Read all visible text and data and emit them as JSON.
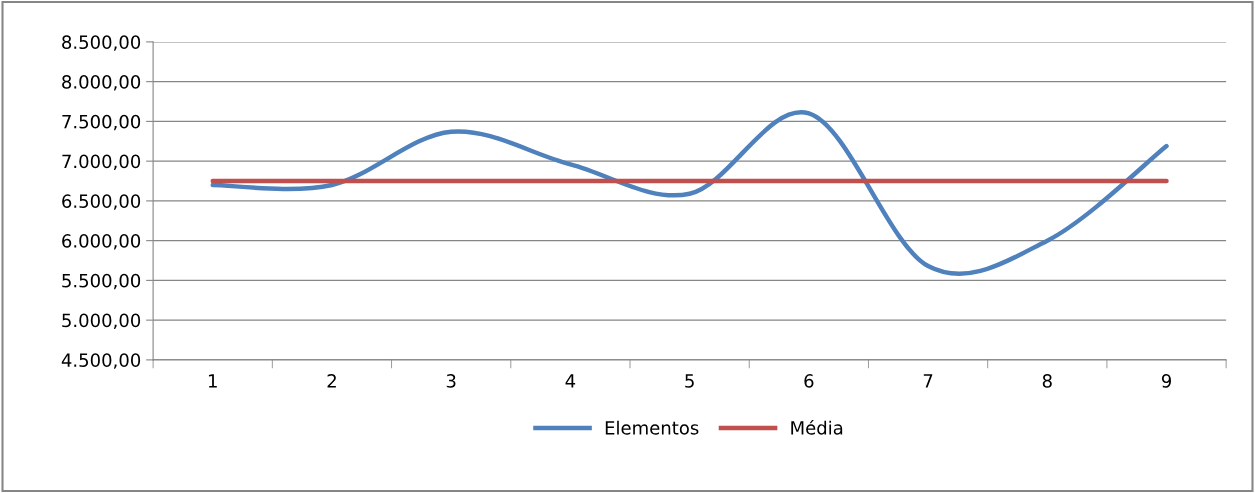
{
  "chart_data": {
    "type": "line",
    "categories": [
      "1",
      "2",
      "3",
      "4",
      "5",
      "6",
      "7",
      "8",
      "9"
    ],
    "series": [
      {
        "name": "Elementos",
        "color": "#4f81bd",
        "values": [
          6700,
          6700,
          7370,
          6960,
          6590,
          7600,
          5680,
          6000,
          7190
        ]
      },
      {
        "name": "Média",
        "color": "#c0504d",
        "values": [
          6750,
          6750,
          6750,
          6750,
          6750,
          6750,
          6750,
          6750,
          6750
        ]
      }
    ],
    "ylim": [
      4500,
      8500
    ],
    "yticks": [
      {
        "value": 4500,
        "label": "4.500,00"
      },
      {
        "value": 5000,
        "label": "5.000,00"
      },
      {
        "value": 5500,
        "label": "5.500,00"
      },
      {
        "value": 6000,
        "label": "6.000,00"
      },
      {
        "value": 6500,
        "label": "6.500,00"
      },
      {
        "value": 7000,
        "label": "7.000,00"
      },
      {
        "value": 7500,
        "label": "7.500,00"
      },
      {
        "value": 8000,
        "label": "8.000,00"
      },
      {
        "value": 8500,
        "label": "8.500,00"
      }
    ],
    "grid": "y",
    "legend": "bottom",
    "marker": "none",
    "line_style": "solid"
  }
}
